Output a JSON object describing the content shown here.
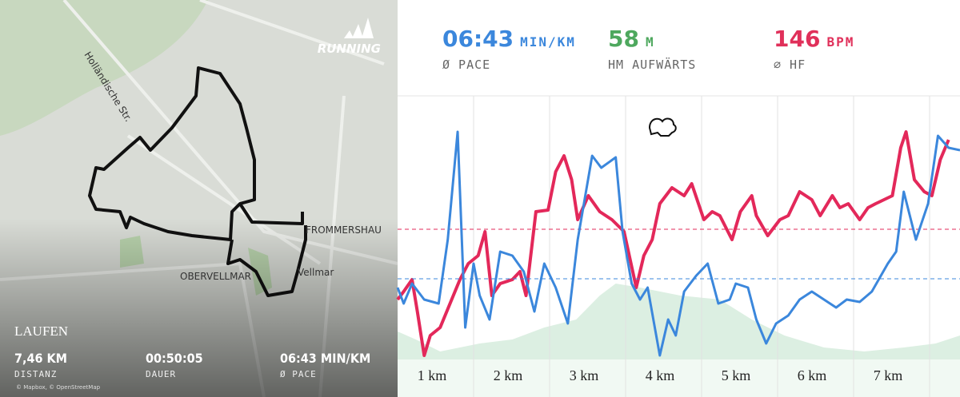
{
  "map": {
    "brand": "RUNNING",
    "streets": [
      "Holländische Str.",
      "FROMMERSHAU",
      "OBERVELLMAR",
      "Vellmar"
    ],
    "activity": "LAUFEN",
    "summary": [
      {
        "value": "7,46 KM",
        "label": "DISTANZ"
      },
      {
        "value": "00:50:05",
        "label": "DAUER"
      },
      {
        "value": "06:43 MIN/KM",
        "label": "Ø PACE"
      }
    ],
    "credit": "© Mapbox, © OpenStreetMap"
  },
  "header": {
    "stats": [
      {
        "value": "06:43",
        "unit": "MIN/KM",
        "label": "Ø PACE",
        "color": "#3b87dc"
      },
      {
        "value": "58",
        "unit": "M",
        "label": "HM AUFWÄRTS",
        "color": "#4ea85e"
      },
      {
        "value": "146",
        "unit": "BPM",
        "label": "⌀ HF",
        "color": "#e0305a"
      }
    ]
  },
  "chart_data": {
    "type": "line",
    "xlim": [
      0,
      7.4
    ],
    "ylim": [
      0,
      325
    ],
    "xticks": [
      {
        "value": 1,
        "label": "1 km"
      },
      {
        "value": 2,
        "label": "2 km"
      },
      {
        "value": 3,
        "label": "3 km"
      },
      {
        "value": 4,
        "label": "4 km"
      },
      {
        "value": 5,
        "label": "5 km"
      },
      {
        "value": 6,
        "label": "6 km"
      },
      {
        "value": 7,
        "label": "7 km"
      }
    ],
    "grid": true,
    "area": {
      "color": "#dcefe2",
      "x": [
        0,
        0.24,
        0.56,
        1.08,
        1.51,
        1.93,
        2.35,
        2.66,
        2.87,
        3.19,
        3.72,
        4.24,
        4.66,
        5.09,
        5.61,
        6.14,
        6.66,
        7.08,
        7.4
      ],
      "values": [
        30,
        20,
        5,
        15,
        20,
        35,
        45,
        75,
        90,
        85,
        75,
        70,
        45,
        25,
        10,
        5,
        10,
        15,
        25
      ]
    },
    "series": [
      {
        "color": "#e3285a",
        "reference": 158,
        "x": [
          0,
          0.08,
          0.19,
          0.26,
          0.35,
          0.43,
          0.56,
          0.69,
          0.82,
          0.93,
          1.06,
          1.15,
          1.24,
          1.35,
          1.51,
          1.61,
          1.69,
          1.82,
          1.98,
          2.08,
          2.19,
          2.29,
          2.37,
          2.51,
          2.66,
          2.82,
          2.98,
          3.14,
          3.24,
          3.35,
          3.45,
          3.61,
          3.77,
          3.87,
          4.03,
          4.14,
          4.24,
          4.4,
          4.51,
          4.66,
          4.72,
          4.87,
          5.03,
          5.14,
          5.29,
          5.45,
          5.56,
          5.72,
          5.82,
          5.93,
          6.08,
          6.19,
          6.29,
          6.4,
          6.51,
          6.62,
          6.69,
          6.8,
          6.93,
          7.03,
          7.14,
          7.25
        ],
        "values": [
          70,
          80,
          95,
          55,
          0,
          25,
          35,
          65,
          95,
          115,
          125,
          155,
          75,
          90,
          95,
          105,
          75,
          180,
          182,
          230,
          250,
          220,
          170,
          200,
          180,
          170,
          155,
          85,
          125,
          145,
          190,
          210,
          200,
          215,
          170,
          180,
          175,
          145,
          180,
          200,
          175,
          150,
          170,
          175,
          205,
          195,
          175,
          200,
          185,
          190,
          170,
          185,
          190,
          195,
          200,
          260,
          280,
          220,
          205,
          200,
          245,
          270
        ]
      },
      {
        "color": "#3b87dc",
        "reference": 96,
        "x": [
          0,
          0.08,
          0.19,
          0.35,
          0.54,
          0.66,
          0.79,
          0.89,
          1,
          1.08,
          1.21,
          1.35,
          1.51,
          1.66,
          1.8,
          1.93,
          2.08,
          2.24,
          2.37,
          2.56,
          2.68,
          2.87,
          2.96,
          3.08,
          3.19,
          3.29,
          3.45,
          3.56,
          3.66,
          3.77,
          3.93,
          4.08,
          4.22,
          4.37,
          4.45,
          4.61,
          4.72,
          4.85,
          4.98,
          5.14,
          5.29,
          5.45,
          5.61,
          5.77,
          5.91,
          6.08,
          6.24,
          6.45,
          6.56,
          6.66,
          6.82,
          6.98,
          7.11,
          7.25,
          7.4
        ],
        "values": [
          85,
          65,
          90,
          70,
          65,
          145,
          280,
          35,
          115,
          75,
          45,
          130,
          125,
          105,
          55,
          115,
          85,
          40,
          145,
          250,
          235,
          248,
          155,
          90,
          70,
          85,
          0,
          45,
          25,
          80,
          100,
          115,
          65,
          70,
          90,
          85,
          45,
          15,
          40,
          50,
          70,
          80,
          70,
          60,
          70,
          67,
          80,
          115,
          130,
          205,
          145,
          190,
          275,
          260,
          257
        ]
      }
    ]
  }
}
